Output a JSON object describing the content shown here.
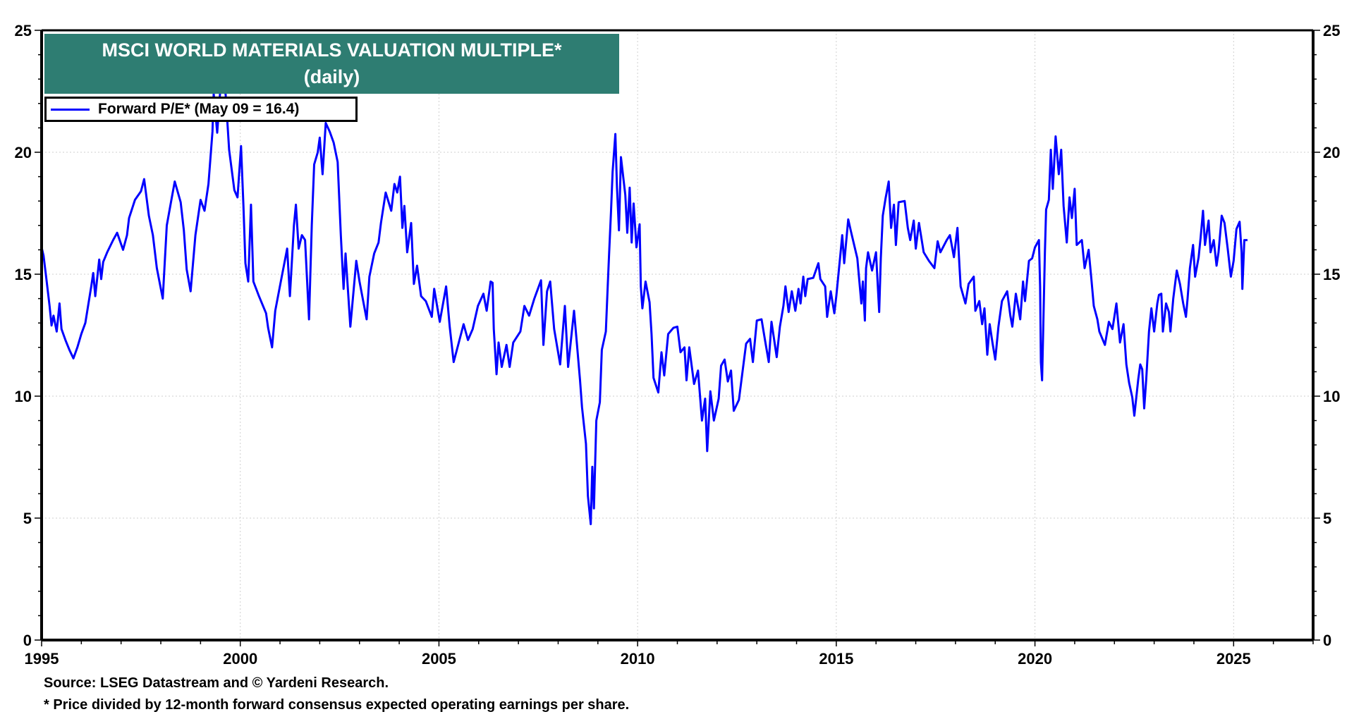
{
  "chart_data": {
    "type": "line",
    "title": "MSCI WORLD MATERIALS VALUATION MULTIPLE*",
    "subtitle": "(daily)",
    "xlabel": "",
    "ylabel": "",
    "xlim": [
      1995,
      2027
    ],
    "ylim": [
      0,
      25
    ],
    "x_ticks": [
      "1995",
      "2000",
      "2005",
      "2010",
      "2015",
      "2020",
      "2025"
    ],
    "y_ticks": [
      "0",
      "5",
      "10",
      "15",
      "20",
      "25"
    ],
    "grid": true,
    "legend_placement": "top-left",
    "series": [
      {
        "name": "Forward P/E* (May 09 = 16.4)",
        "color": "#0000FF",
        "x": [
          1995.0,
          1995.05,
          1995.12,
          1995.2,
          1995.25,
          1995.3,
          1995.38,
          1995.45,
          1995.5,
          1995.6,
          1995.7,
          1995.8,
          1995.9,
          1996.0,
          1996.1,
          1996.17,
          1996.25,
          1996.3,
          1996.35,
          1996.45,
          1996.5,
          1996.55,
          1996.65,
          1996.8,
          1996.9,
          1997.05,
          1997.15,
          1997.2,
          1997.35,
          1997.5,
          1997.58,
          1997.7,
          1997.8,
          1997.9,
          1998.05,
          1998.15,
          1998.25,
          1998.35,
          1998.5,
          1998.58,
          1998.65,
          1998.75,
          1998.87,
          1999.0,
          1999.1,
          1999.2,
          1999.3,
          1999.33,
          1999.42,
          1999.5,
          1999.63,
          1999.72,
          1999.85,
          1999.93,
          2000.02,
          2000.08,
          2000.13,
          2000.2,
          2000.27,
          2000.33,
          2000.47,
          2000.65,
          2000.7,
          2000.8,
          2000.88,
          2001.02,
          2001.18,
          2001.25,
          2001.35,
          2001.4,
          2001.47,
          2001.55,
          2001.63,
          2001.73,
          2001.8,
          2001.86,
          2001.95,
          2002.0,
          2002.07,
          2002.15,
          2002.25,
          2002.35,
          2002.45,
          2002.53,
          2002.6,
          2002.65,
          2002.77,
          2002.92,
          2003.0,
          2003.18,
          2003.25,
          2003.37,
          2003.48,
          2003.54,
          2003.66,
          2003.8,
          2003.88,
          2003.95,
          2004.02,
          2004.08,
          2004.13,
          2004.2,
          2004.3,
          2004.37,
          2004.45,
          2004.55,
          2004.67,
          2004.82,
          2004.88,
          2005.02,
          2005.18,
          2005.27,
          2005.37,
          2005.5,
          2005.62,
          2005.73,
          2005.85,
          2005.98,
          2006.12,
          2006.2,
          2006.3,
          2006.35,
          2006.38,
          2006.45,
          2006.5,
          2006.58,
          2006.7,
          2006.78,
          2006.87,
          2007.05,
          2007.15,
          2007.27,
          2007.4,
          2007.57,
          2007.63,
          2007.72,
          2007.8,
          2007.9,
          2008.05,
          2008.17,
          2008.25,
          2008.4,
          2008.48,
          2008.55,
          2008.6,
          2008.7,
          2008.75,
          2008.82,
          2008.86,
          2008.9,
          2008.96,
          2009.05,
          2009.1,
          2009.2,
          2009.25,
          2009.28,
          2009.33,
          2009.37,
          2009.44,
          2009.48,
          2009.53,
          2009.58,
          2009.69,
          2009.74,
          2009.8,
          2009.85,
          2009.9,
          2009.97,
          2010.05,
          2010.08,
          2010.12,
          2010.2,
          2010.3,
          2010.35,
          2010.4,
          2010.52,
          2010.6,
          2010.67,
          2010.77,
          2010.9,
          2011.0,
          2011.08,
          2011.18,
          2011.23,
          2011.3,
          2011.42,
          2011.52,
          2011.62,
          2011.7,
          2011.75,
          2011.83,
          2011.92,
          2012.04,
          2012.1,
          2012.19,
          2012.27,
          2012.35,
          2012.42,
          2012.55,
          2012.64,
          2012.73,
          2012.83,
          2012.9,
          2013.0,
          2013.12,
          2013.2,
          2013.3,
          2013.37,
          2013.5,
          2013.58,
          2013.67,
          2013.72,
          2013.8,
          2013.88,
          2013.97,
          2014.05,
          2014.1,
          2014.17,
          2014.22,
          2014.28,
          2014.42,
          2014.55,
          2014.6,
          2014.72,
          2014.77,
          2014.86,
          2014.95,
          2015.0,
          2015.1,
          2015.15,
          2015.2,
          2015.3,
          2015.37,
          2015.45,
          2015.53,
          2015.63,
          2015.67,
          2015.72,
          2015.75,
          2015.8,
          2015.9,
          2016.0,
          2016.08,
          2016.12,
          2016.17,
          2016.24,
          2016.32,
          2016.38,
          2016.45,
          2016.5,
          2016.57,
          2016.72,
          2016.8,
          2016.86,
          2016.95,
          2017.0,
          2017.08,
          2017.2,
          2017.33,
          2017.47,
          2017.55,
          2017.62,
          2017.78,
          2017.86,
          2017.96,
          2018.05,
          2018.1,
          2018.13,
          2018.25,
          2018.33,
          2018.46,
          2018.5,
          2018.6,
          2018.67,
          2018.73,
          2018.8,
          2018.86,
          2018.93,
          2019.0,
          2019.08,
          2019.17,
          2019.3,
          2019.38,
          2019.43,
          2019.52,
          2019.63,
          2019.7,
          2019.75,
          2019.85,
          2019.93,
          2020.0,
          2020.1,
          2020.13,
          2020.15,
          2020.18,
          2020.25,
          2020.28,
          2020.35,
          2020.4,
          2020.45,
          2020.52,
          2020.6,
          2020.66,
          2020.72,
          2020.8,
          2020.87,
          2020.93,
          2021.0,
          2021.05,
          2021.18,
          2021.25,
          2021.35,
          2021.42,
          2021.48,
          2021.57,
          2021.62,
          2021.76,
          2021.86,
          2021.95,
          2022.05,
          2022.14,
          2022.23,
          2022.3,
          2022.37,
          2022.45,
          2022.5,
          2022.6,
          2022.65,
          2022.7,
          2022.75,
          2022.8,
          2022.87,
          2022.93,
          2023.0,
          2023.08,
          2023.12,
          2023.18,
          2023.22,
          2023.3,
          2023.37,
          2023.41,
          2023.48,
          2023.57,
          2023.65,
          2023.73,
          2023.8,
          2023.84,
          2023.9,
          2023.98,
          2024.03,
          2024.12,
          2024.17,
          2024.23,
          2024.28,
          2024.37,
          2024.42,
          2024.5,
          2024.57,
          2024.62,
          2024.7,
          2024.77,
          2024.85,
          2024.93,
          2025.0,
          2025.07,
          2025.15,
          2025.2,
          2025.22,
          2025.27,
          2025.35
        ],
        "y": [
          16.1,
          15.75,
          14.8,
          13.7,
          12.9,
          13.3,
          12.65,
          13.8,
          12.75,
          12.3,
          11.9,
          11.55,
          12.0,
          12.55,
          13.0,
          13.7,
          14.5,
          15.05,
          14.1,
          15.6,
          14.8,
          15.5,
          15.9,
          16.4,
          16.7,
          16.0,
          16.6,
          17.3,
          18.05,
          18.4,
          18.9,
          17.4,
          16.6,
          15.25,
          14.0,
          17.0,
          17.9,
          18.8,
          17.95,
          16.8,
          15.2,
          14.3,
          16.6,
          18.05,
          17.6,
          18.7,
          20.85,
          22.4,
          20.8,
          22.6,
          22.4,
          20.1,
          18.45,
          18.15,
          20.25,
          17.8,
          15.45,
          14.7,
          17.85,
          14.7,
          14.1,
          13.4,
          12.8,
          12.0,
          13.5,
          14.7,
          16.05,
          14.1,
          17.0,
          17.85,
          16.05,
          16.6,
          16.4,
          13.15,
          17.0,
          19.5,
          20.0,
          20.6,
          19.1,
          21.2,
          20.85,
          20.4,
          19.6,
          16.6,
          14.4,
          15.85,
          12.85,
          15.55,
          14.7,
          13.15,
          14.9,
          15.85,
          16.3,
          17.1,
          18.35,
          17.6,
          18.7,
          18.35,
          19.0,
          16.9,
          17.8,
          15.9,
          17.1,
          14.6,
          15.35,
          14.1,
          13.9,
          13.25,
          14.4,
          13.05,
          14.5,
          12.85,
          11.4,
          12.2,
          12.95,
          12.3,
          12.75,
          13.7,
          14.2,
          13.5,
          14.7,
          14.65,
          12.75,
          10.9,
          12.2,
          11.2,
          12.1,
          11.2,
          12.2,
          12.65,
          13.7,
          13.3,
          14.0,
          14.75,
          12.1,
          14.3,
          14.7,
          12.75,
          11.3,
          13.7,
          11.2,
          13.5,
          12.0,
          10.65,
          9.55,
          8.05,
          5.9,
          4.75,
          7.1,
          5.4,
          9.0,
          9.75,
          11.9,
          12.65,
          14.6,
          15.75,
          17.55,
          19.2,
          20.75,
          18.55,
          16.8,
          19.8,
          18.25,
          16.7,
          18.55,
          16.3,
          17.9,
          16.1,
          17.05,
          14.5,
          13.6,
          14.7,
          13.85,
          12.55,
          10.75,
          10.15,
          11.8,
          10.85,
          12.55,
          12.8,
          12.85,
          11.8,
          12.0,
          10.65,
          12.0,
          10.5,
          11.05,
          9.0,
          9.9,
          7.75,
          10.2,
          9.0,
          9.9,
          11.25,
          11.5,
          10.6,
          11.05,
          9.4,
          9.85,
          11.0,
          12.15,
          12.35,
          11.4,
          13.1,
          13.15,
          12.35,
          11.4,
          13.05,
          11.6,
          12.85,
          13.7,
          14.5,
          13.45,
          14.3,
          13.5,
          14.4,
          13.8,
          14.9,
          14.1,
          14.8,
          14.85,
          15.45,
          14.8,
          14.5,
          13.25,
          14.3,
          13.4,
          14.1,
          15.75,
          16.6,
          15.45,
          17.25,
          16.75,
          16.2,
          15.65,
          13.8,
          14.7,
          13.1,
          15.25,
          15.9,
          15.15,
          15.9,
          13.45,
          15.65,
          17.4,
          18.1,
          18.8,
          16.9,
          17.85,
          16.2,
          17.95,
          18.0,
          16.9,
          16.4,
          17.2,
          16.05,
          17.1,
          15.9,
          15.55,
          15.25,
          16.35,
          15.9,
          16.4,
          16.6,
          15.7,
          16.9,
          15.35,
          14.5,
          13.8,
          14.6,
          14.9,
          13.5,
          13.9,
          12.95,
          13.6,
          11.7,
          12.95,
          12.2,
          11.5,
          12.85,
          13.9,
          14.3,
          13.3,
          12.85,
          14.2,
          13.15,
          14.7,
          13.9,
          15.55,
          15.65,
          16.1,
          16.4,
          14.5,
          11.4,
          10.65,
          15.9,
          17.65,
          18.05,
          20.1,
          18.5,
          20.65,
          19.1,
          20.1,
          17.8,
          16.3,
          18.15,
          17.3,
          18.5,
          16.2,
          16.4,
          15.25,
          16.0,
          14.8,
          13.7,
          13.15,
          12.65,
          12.1,
          13.05,
          12.75,
          13.8,
          12.2,
          12.95,
          11.3,
          10.55,
          9.95,
          9.2,
          10.7,
          11.3,
          11.1,
          9.5,
          10.7,
          12.65,
          13.6,
          12.65,
          13.8,
          14.15,
          14.2,
          12.65,
          13.8,
          13.45,
          12.65,
          14.0,
          15.15,
          14.6,
          13.8,
          13.25,
          14.0,
          15.25,
          16.2,
          14.9,
          15.7,
          16.5,
          17.6,
          16.2,
          17.2,
          15.9,
          16.4,
          15.35,
          15.9,
          17.4,
          17.1,
          16.05,
          14.9,
          15.55,
          16.85,
          17.15,
          15.9,
          14.4,
          16.4,
          16.4
        ]
      }
    ],
    "annotations": []
  },
  "title": {
    "line1": "MSCI WORLD MATERIALS VALUATION MULTIPLE*",
    "line2": "(daily)"
  },
  "legend": {
    "label": "Forward P/E* (May 09 = 16.4)"
  },
  "footer": {
    "source": "Source: LSEG Datastream and © Yardeni Research.",
    "note": "* Price divided by 12-month forward consensus expected operating earnings per share."
  },
  "colors": {
    "series": "#0000FF",
    "title_bg": "#2E7D72"
  }
}
